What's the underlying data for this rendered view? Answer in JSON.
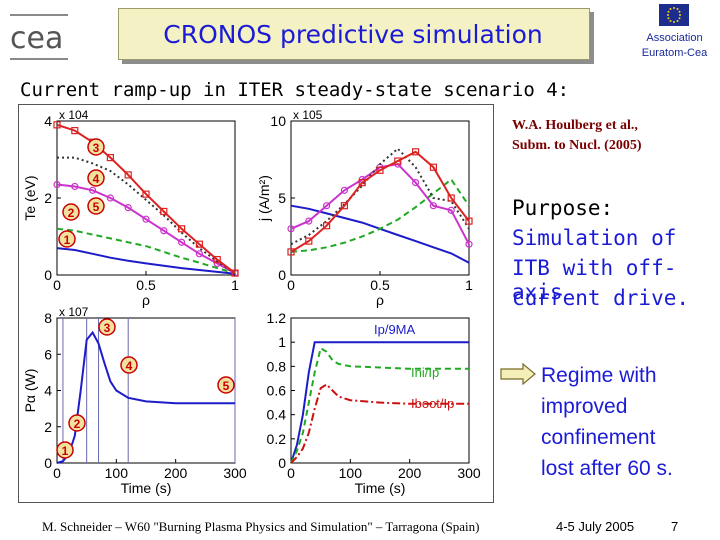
{
  "header": {
    "title": "CRONOS predictive simulation",
    "logo_text": "cea",
    "association_line1": "Association",
    "association_line2": "Euratom-Cea"
  },
  "heading": "Current ramp-up in ITER steady-state scenario 4:",
  "reference": {
    "line1": "W.A. Houlberg et al.,",
    "line2": "Subm. to Nucl. (2005)"
  },
  "purpose": {
    "title": "Purpose:",
    "lines": [
      "Simulation of",
      "ITB with off-axis",
      "current drive."
    ]
  },
  "conclusion": {
    "icon": "right-arrow-icon",
    "lines": [
      "Regime with",
      "improved",
      "confinement",
      "lost after 60 s."
    ]
  },
  "footer": {
    "citation": "M. Schneider – W60 \"Burning Plasma Physics and Simulation\" – Tarragona (Spain)",
    "date": "4-5 July 2005",
    "page": "7"
  },
  "colors": {
    "title_bg": "#f4f1c4",
    "title_text": "#1b1bd6",
    "marker_circle": "#cc0000",
    "marker_fill": "#f2e2a0",
    "time_marker_lines": "#6a6ab0"
  },
  "chart_data": [
    {
      "type": "line",
      "panel": "top-left",
      "xlabel": "ρ",
      "ylabel": "Te (eV)",
      "y_multiplier": "x 10^4",
      "xlim": [
        0,
        1
      ],
      "ylim": [
        0,
        4
      ],
      "xticks": [
        "0",
        "0.5",
        "1"
      ],
      "yticks": [
        "0",
        "2",
        "4"
      ],
      "x": [
        0,
        0.1,
        0.2,
        0.3,
        0.4,
        0.5,
        0.6,
        0.7,
        0.8,
        0.9,
        1.0
      ],
      "series": [
        {
          "values": [
            0.7,
            0.65,
            0.55,
            0.45,
            0.37,
            0.3,
            0.24,
            0.18,
            0.13,
            0.08,
            0.03
          ],
          "color": "#1c1cc8"
        },
        {
          "values": [
            1.2,
            1.15,
            1.05,
            0.95,
            0.85,
            0.75,
            0.6,
            0.45,
            0.32,
            0.18,
            0.05
          ],
          "color": "#22a822",
          "dash": "dashed"
        },
        {
          "values": [
            2.35,
            2.3,
            2.2,
            2.0,
            1.75,
            1.45,
            1.15,
            0.85,
            0.55,
            0.3,
            0.05
          ],
          "color": "#cc33cc",
          "marker": "circle"
        },
        {
          "values": [
            3.05,
            3.05,
            2.9,
            2.7,
            2.35,
            1.95,
            1.55,
            1.1,
            0.7,
            0.35,
            0.05
          ],
          "color": "#333333",
          "dash": "dotted"
        },
        {
          "values": [
            3.9,
            3.75,
            3.45,
            3.05,
            2.6,
            2.1,
            1.65,
            1.2,
            0.8,
            0.4,
            0.05
          ],
          "color": "#dd2222",
          "marker": "square"
        }
      ],
      "annotations": [
        "3",
        "4",
        "2",
        "5",
        "1"
      ]
    },
    {
      "type": "line",
      "panel": "top-right",
      "xlabel": "ρ",
      "ylabel": "j (A/m²)",
      "y_multiplier": "x 10^5",
      "xlim": [
        0,
        1
      ],
      "ylim": [
        0,
        10
      ],
      "xticks": [
        "0",
        "0.5",
        "1"
      ],
      "yticks": [
        "0",
        "5",
        "10"
      ],
      "x": [
        0,
        0.1,
        0.2,
        0.3,
        0.4,
        0.5,
        0.6,
        0.7,
        0.8,
        0.9,
        1.0
      ],
      "series": [
        {
          "values": [
            4.5,
            4.3,
            4.0,
            3.7,
            3.4,
            3.0,
            2.6,
            2.2,
            1.8,
            1.4,
            0.8
          ],
          "color": "#1c1cc8"
        },
        {
          "values": [
            1.5,
            1.6,
            1.8,
            2.1,
            2.5,
            3.0,
            3.6,
            4.4,
            5.3,
            6.2,
            4.5
          ],
          "color": "#22a822",
          "dash": "dashed"
        },
        {
          "values": [
            3.0,
            3.5,
            4.5,
            5.5,
            6.2,
            7.0,
            7.2,
            6.0,
            4.5,
            4.2,
            2.0
          ],
          "color": "#cc33cc",
          "marker": "circle"
        },
        {
          "values": [
            2.0,
            2.6,
            3.5,
            4.6,
            5.8,
            7.2,
            8.2,
            7.0,
            5.0,
            4.8,
            3.0
          ],
          "color": "#333333",
          "dash": "dotted"
        },
        {
          "values": [
            1.5,
            2.2,
            3.2,
            4.5,
            6.0,
            6.8,
            7.4,
            8.0,
            7.0,
            5.0,
            3.5
          ],
          "color": "#dd2222",
          "marker": "square"
        }
      ]
    },
    {
      "type": "line",
      "panel": "bottom-left",
      "xlabel": "Time (s)",
      "ylabel": "Pα (W)",
      "y_multiplier": "x 10^7",
      "xlim": [
        0,
        300
      ],
      "ylim": [
        0,
        8
      ],
      "xticks": [
        "0",
        "100",
        "200",
        "300"
      ],
      "yticks": [
        "0",
        "2",
        "4",
        "6",
        "8"
      ],
      "time_markers": [
        10,
        50,
        70,
        120,
        300
      ],
      "x": [
        0,
        10,
        20,
        30,
        40,
        50,
        60,
        70,
        80,
        90,
        100,
        120,
        150,
        200,
        250,
        300
      ],
      "series": [
        {
          "values": [
            0,
            0.1,
            0.5,
            1.5,
            4.0,
            6.8,
            7.2,
            6.6,
            5.5,
            4.5,
            4.0,
            3.6,
            3.4,
            3.3,
            3.3,
            3.3
          ],
          "color": "#1c1cc8"
        }
      ],
      "annotations": [
        "3",
        "4",
        "5",
        "2",
        "1"
      ]
    },
    {
      "type": "line",
      "panel": "bottom-right",
      "xlabel": "Time (s)",
      "xlim": [
        0,
        300
      ],
      "ylim": [
        0,
        1.2
      ],
      "xticks": [
        "0",
        "100",
        "200",
        "300"
      ],
      "yticks": [
        "0",
        "0.2",
        "0.4",
        "0.6",
        "0.8",
        "1",
        "1.2"
      ],
      "x": [
        0,
        10,
        20,
        30,
        40,
        50,
        60,
        70,
        80,
        100,
        150,
        200,
        250,
        300
      ],
      "series": [
        {
          "name": "Ip/9MA",
          "values": [
            0,
            0.15,
            0.4,
            0.75,
            1.0,
            1.0,
            1.0,
            1.0,
            1.0,
            1.0,
            1.0,
            1.0,
            1.0,
            1.0
          ],
          "color": "#1c1cc8"
        },
        {
          "name": "Ini/Ip",
          "values": [
            0,
            0.1,
            0.25,
            0.5,
            0.75,
            0.95,
            0.92,
            0.85,
            0.82,
            0.8,
            0.79,
            0.78,
            0.78,
            0.78
          ],
          "color": "#22aa22",
          "dash": "dashed"
        },
        {
          "name": "Iboot/Ip",
          "values": [
            0,
            0.05,
            0.12,
            0.25,
            0.45,
            0.62,
            0.65,
            0.6,
            0.55,
            0.52,
            0.5,
            0.49,
            0.49,
            0.49
          ],
          "color": "#cc1111",
          "dash": "dashdot"
        }
      ]
    }
  ]
}
